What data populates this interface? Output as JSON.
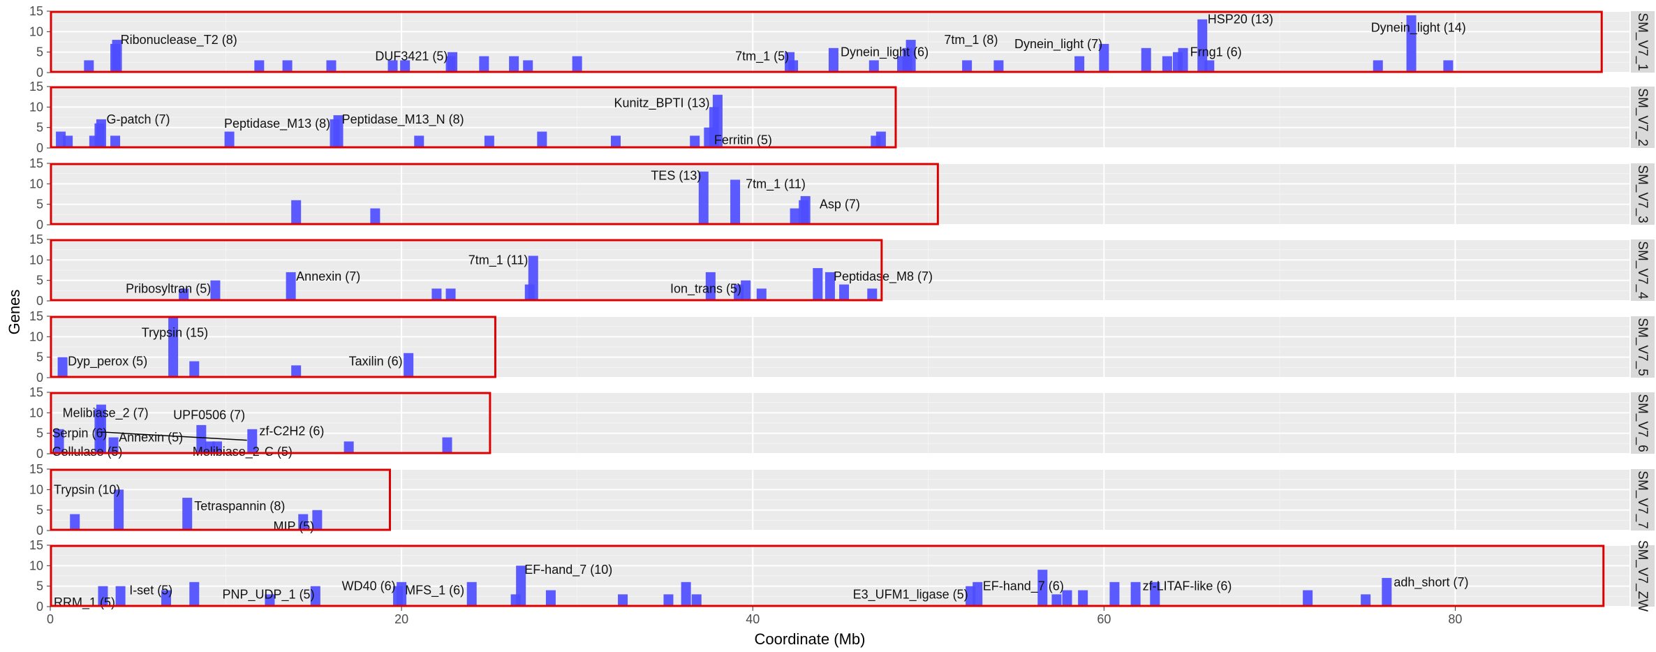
{
  "chart_data": {
    "type": "bar",
    "xlabel": "Coordinate (Mb)",
    "ylabel": "Genes",
    "xlim": [
      0,
      90
    ],
    "ylim": [
      0,
      15
    ],
    "x_ticks": [
      0,
      20,
      40,
      60,
      80
    ],
    "y_ticks": [
      0,
      5,
      10,
      15
    ],
    "grid": true,
    "colors": {
      "bar": "#4d4dff",
      "bar_dark": "#1010ee",
      "panel_bg": "#ebebeb",
      "grid": "#ffffff",
      "highlight_box": "#dd0000",
      "strip_bg": "#d9d9d9"
    },
    "panels": [
      {
        "name": "SM_V7_1",
        "length": 88.3,
        "bars": [
          [
            2.2,
            3
          ],
          [
            3.7,
            7
          ],
          [
            3.8,
            8
          ],
          [
            11.9,
            3
          ],
          [
            13.5,
            3
          ],
          [
            16,
            3
          ],
          [
            19.5,
            3
          ],
          [
            20.2,
            3
          ],
          [
            22.8,
            4
          ],
          [
            22.9,
            5
          ],
          [
            24.7,
            4
          ],
          [
            26.4,
            4
          ],
          [
            27.2,
            3
          ],
          [
            30,
            4
          ],
          [
            42.1,
            5
          ],
          [
            42.3,
            3
          ],
          [
            44.6,
            6
          ],
          [
            46.9,
            3
          ],
          [
            48.5,
            4
          ],
          [
            48.8,
            6
          ],
          [
            49,
            8
          ],
          [
            52.2,
            3
          ],
          [
            54,
            3
          ],
          [
            58.6,
            4
          ],
          [
            60,
            7
          ],
          [
            62.4,
            6
          ],
          [
            63.6,
            4
          ],
          [
            64.2,
            5
          ],
          [
            64.5,
            6
          ],
          [
            65.6,
            13
          ],
          [
            66,
            3
          ],
          [
            75.6,
            3
          ],
          [
            77.5,
            14
          ],
          [
            79.6,
            3
          ]
        ],
        "labels": [
          {
            "text": "Ribonuclease_T2 (8)",
            "x": 4.0,
            "y": 8
          },
          {
            "text": "DUF3421 (5)",
            "x": 18.5,
            "y": 4
          },
          {
            "text": "7tm_1 (5)",
            "x": 39.0,
            "y": 4
          },
          {
            "text": "Dynein_light (6)",
            "x": 45.0,
            "y": 5
          },
          {
            "text": "7tm_1 (8)",
            "x": 50.9,
            "y": 8
          },
          {
            "text": "Dynein_light (7)",
            "x": 54.9,
            "y": 7
          },
          {
            "text": "Frng1 (6)",
            "x": 64.9,
            "y": 5
          },
          {
            "text": "HSP20 (13)",
            "x": 65.9,
            "y": 13
          },
          {
            "text": "Dynein_light (14)",
            "x": 75.2,
            "y": 11
          }
        ]
      },
      {
        "name": "SM_V7_2",
        "length": 48.1,
        "bars": [
          [
            0.6,
            4
          ],
          [
            1,
            3
          ],
          [
            2.5,
            3
          ],
          [
            2.8,
            6
          ],
          [
            2.9,
            7
          ],
          [
            3.7,
            3
          ],
          [
            10.2,
            4
          ],
          [
            16.2,
            7
          ],
          [
            16.4,
            8
          ],
          [
            21,
            3
          ],
          [
            25,
            3
          ],
          [
            28,
            4
          ],
          [
            32.2,
            3
          ],
          [
            36.7,
            3
          ],
          [
            37.5,
            5
          ],
          [
            37.8,
            10
          ],
          [
            38,
            13
          ],
          [
            47,
            3
          ],
          [
            47.3,
            4
          ]
        ],
        "labels": [
          {
            "text": "G-patch (7)",
            "x": 3.2,
            "y": 7
          },
          {
            "text": "Peptidase_M13 (8)",
            "x": 9.9,
            "y": 6
          },
          {
            "text": "Peptidase_M13_N (8)",
            "x": 16.6,
            "y": 7
          },
          {
            "text": "Kunitz_BPTI (13)",
            "x": 32.1,
            "y": 11
          },
          {
            "text": "Ferritin (5)",
            "x": 37.8,
            "y": 2
          }
        ]
      },
      {
        "name": "SM_V7_3",
        "length": 50.5,
        "bars": [
          [
            14,
            6
          ],
          [
            18.5,
            4
          ],
          [
            37.2,
            13
          ],
          [
            39,
            11
          ],
          [
            42.4,
            4
          ],
          [
            42.9,
            6
          ],
          [
            43,
            7
          ]
        ],
        "labels": [
          {
            "text": "TES (13)",
            "x": 34.2,
            "y": 12
          },
          {
            "text": "7tm_1 (11)",
            "x": 39.6,
            "y": 10
          },
          {
            "text": "Asp (7)",
            "x": 43.8,
            "y": 5
          }
        ]
      },
      {
        "name": "SM_V7_4",
        "length": 47.3,
        "bars": [
          [
            7.6,
            3
          ],
          [
            9.4,
            5
          ],
          [
            13.7,
            7
          ],
          [
            22,
            3
          ],
          [
            22.8,
            3
          ],
          [
            27.3,
            4
          ],
          [
            27.5,
            11
          ],
          [
            37.6,
            7
          ],
          [
            39.2,
            4
          ],
          [
            39.6,
            5
          ],
          [
            40.5,
            3
          ],
          [
            43.7,
            8
          ],
          [
            44.4,
            7
          ],
          [
            45.2,
            4
          ],
          [
            46.8,
            3
          ]
        ],
        "labels": [
          {
            "text": "Pribosyltran (5)",
            "x": 4.3,
            "y": 3
          },
          {
            "text": "Annexin (7)",
            "x": 14.0,
            "y": 6
          },
          {
            "text": "7tm_1 (11)",
            "x": 23.8,
            "y": 10
          },
          {
            "text": "Ion_trans (5)",
            "x": 35.3,
            "y": 3
          },
          {
            "text": "Peptidase_M8 (7)",
            "x": 44.6,
            "y": 6
          }
        ]
      },
      {
        "name": "SM_V7_5",
        "length": 25.3,
        "bars": [
          [
            0.7,
            5
          ],
          [
            7,
            15
          ],
          [
            8.2,
            4
          ],
          [
            14,
            3
          ],
          [
            20.4,
            6
          ]
        ],
        "labels": [
          {
            "text": "Dyp_perox (5)",
            "x": 1.0,
            "y": 4
          },
          {
            "text": "Trypsin (15)",
            "x": 5.2,
            "y": 11
          },
          {
            "text": "Taxilin (6)",
            "x": 17.0,
            "y": 4
          }
        ]
      },
      {
        "name": "SM_V7_6",
        "length": 25.0,
        "bars": [
          [
            0.5,
            6
          ],
          [
            2.8,
            11
          ],
          [
            2.9,
            12
          ],
          [
            3.6,
            4
          ],
          [
            8.6,
            7
          ],
          [
            9.1,
            3
          ],
          [
            9.5,
            3
          ],
          [
            11.5,
            6
          ],
          [
            17,
            3
          ],
          [
            22.6,
            4
          ]
        ],
        "labels": [
          {
            "text": "Melibiase_2 (7)",
            "x": 0.7,
            "y": 10
          },
          {
            "text": "Serpin (6)",
            "x": 0.1,
            "y": 5
          },
          {
            "text": "Annexin (5)",
            "x": 3.9,
            "y": 4
          },
          {
            "text": "Cellulase (5)",
            "x": 0.1,
            "y": 0.5
          },
          {
            "text": "UPF0506 (7)",
            "x": 7.0,
            "y": 9.5
          },
          {
            "text": "Melibiase_2",
            "x": 8.1,
            "y": 0.5
          },
          {
            "text": "C (5)",
            "x": 12.2,
            "y": 0.5
          },
          {
            "text": "zf-C2H2 (6)",
            "x": 11.9,
            "y": 5.5
          }
        ],
        "connector_lines": [
          [
            [
              2.9,
              5.3
            ],
            [
              11.2,
              3.3
            ]
          ]
        ]
      },
      {
        "name": "SM_V7_7",
        "length": 19.3,
        "bars": [
          [
            1.4,
            4
          ],
          [
            3.9,
            10
          ],
          [
            7.8,
            8
          ],
          [
            14.4,
            4
          ],
          [
            15.2,
            5
          ]
        ],
        "labels": [
          {
            "text": "Trypsin (10)",
            "x": 0.2,
            "y": 10
          },
          {
            "text": "Tetraspannin (8)",
            "x": 8.2,
            "y": 6
          },
          {
            "text": "MIP (5)",
            "x": 12.7,
            "y": 1
          }
        ]
      },
      {
        "name": "SM_V7_ZW",
        "length": 88.4,
        "bars": [
          [
            3,
            5
          ],
          [
            4,
            5
          ],
          [
            6.6,
            4
          ],
          [
            8.2,
            6
          ],
          [
            12.5,
            3
          ],
          [
            15.1,
            5
          ],
          [
            19.8,
            5
          ],
          [
            20,
            6
          ],
          [
            24,
            6
          ],
          [
            26.5,
            3
          ],
          [
            26.8,
            10
          ],
          [
            28.5,
            4
          ],
          [
            32.6,
            3
          ],
          [
            35.2,
            3
          ],
          [
            36.2,
            6
          ],
          [
            36.8,
            3
          ],
          [
            52.4,
            5
          ],
          [
            52.8,
            6
          ],
          [
            56.5,
            9
          ],
          [
            57.3,
            3
          ],
          [
            57.9,
            4
          ],
          [
            58.8,
            4
          ],
          [
            60.6,
            6
          ],
          [
            61.8,
            6
          ],
          [
            62.9,
            6
          ],
          [
            71.6,
            4
          ],
          [
            74.9,
            3
          ],
          [
            76.1,
            7
          ]
        ],
        "labels": [
          {
            "text": "RRM_1 (5)",
            "x": 0.2,
            "y": 1
          },
          {
            "text": "I-set (5)",
            "x": 4.5,
            "y": 4
          },
          {
            "text": "PNP_UDP_1 (5)",
            "x": 9.8,
            "y": 3
          },
          {
            "text": "WD40 (6)",
            "x": 16.6,
            "y": 5
          },
          {
            "text": "MFS_1 (6)",
            "x": 20.2,
            "y": 4
          },
          {
            "text": "EF-hand_7 (10)",
            "x": 27.0,
            "y": 9
          },
          {
            "text": "E3_UFM1_ligase (5)",
            "x": 45.7,
            "y": 3
          },
          {
            "text": "EF-hand_7 (6)",
            "x": 53.1,
            "y": 5
          },
          {
            "text": "zf-LITAF-like (6)",
            "x": 62.2,
            "y": 5
          },
          {
            "text": "adh_short (7)",
            "x": 76.5,
            "y": 6
          }
        ]
      }
    ]
  }
}
